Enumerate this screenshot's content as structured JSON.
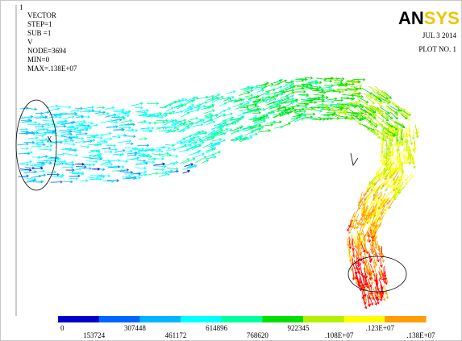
{
  "window_number": "1",
  "info": [
    "VECTOR",
    "STEP=1",
    "SUB =1",
    "V",
    "NODE=3694",
    "MIN=0",
    "MAX=.138E+07"
  ],
  "logo": {
    "dark": "AN",
    "light": "SYS"
  },
  "date": "JUL  3 2014",
  "plot_no": "PLOT NO.   1",
  "legend": {
    "colors": [
      "#0000c8",
      "#0064ff",
      "#00b4ff",
      "#00ffff",
      "#00ff9c",
      "#00e000",
      "#b4f000",
      "#ffff00",
      "#ff9c00",
      "#ff0000"
    ],
    "labels": [
      "0",
      "153724",
      "307448",
      "461172",
      "614896",
      "768620",
      "922345",
      ".108E+07",
      ".123E+07",
      ".138E+07"
    ]
  }
}
